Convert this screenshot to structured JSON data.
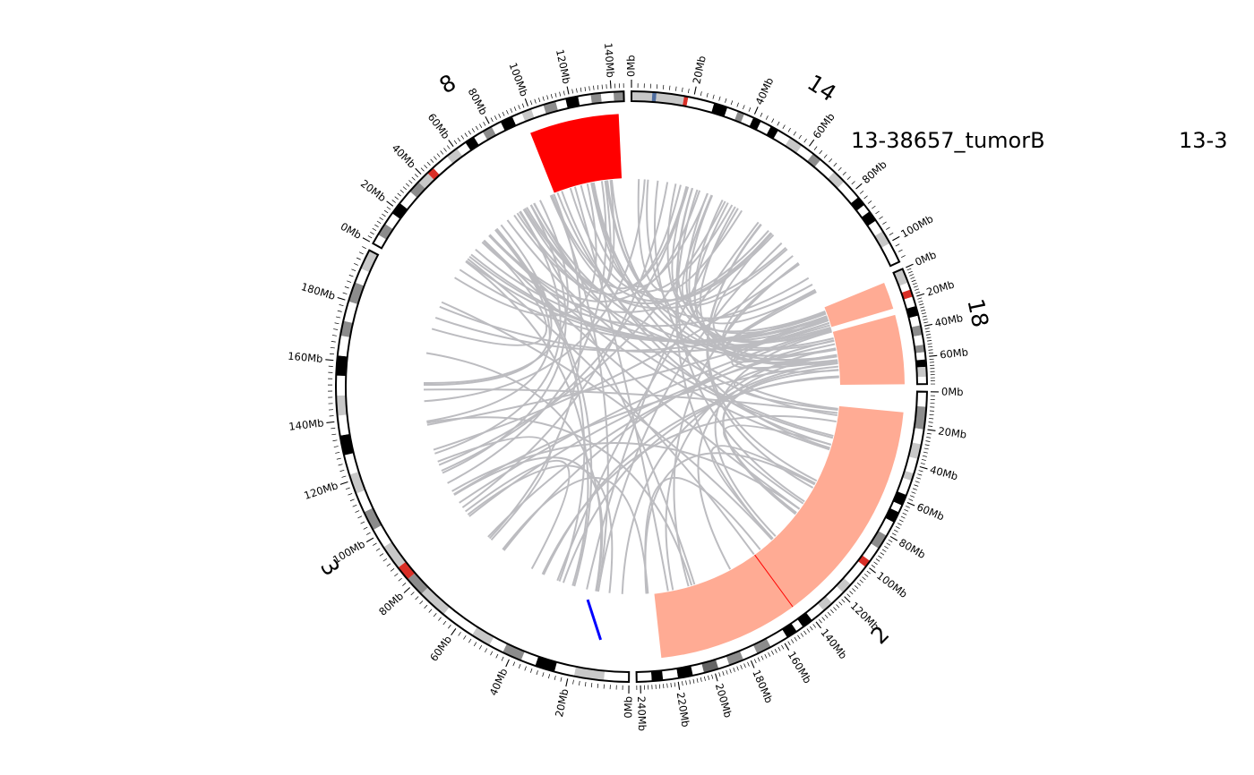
{
  "sample_labels": [
    "13-38657_tumorB",
    "13-3"
  ],
  "colors": {
    "ideogram_outline": "#000000",
    "gneg": "#ffffff",
    "gpos25": "#c8c8c8",
    "gpos50": "#8c8c8c",
    "gpos75": "#646464",
    "gpos100": "#000000",
    "acen": "#d92f27",
    "gvar": "#4f6d9f",
    "links": "#bcbcc0",
    "cnv_gain_strong": "#ff0000",
    "cnv_gain": "#ffab94",
    "cnv_loss": "#0000ff",
    "cnv_breakpoint": "#ff0000"
  },
  "chart_data": {
    "type": "circos",
    "chromosomes": [
      {
        "name": "14",
        "start_deg": 0.0,
        "end_deg": 65.0,
        "length_mb": 107,
        "tick_max_mb": 100,
        "tick_step_mb": 20,
        "bands": [
          [
            0,
            15,
            "gpos25"
          ],
          [
            15,
            18,
            "gvar"
          ],
          [
            18,
            38,
            "gpos25"
          ],
          [
            38,
            41,
            "acen"
          ],
          [
            41,
            60,
            "gneg"
          ],
          [
            60,
            70,
            "gpos100"
          ],
          [
            70,
            78,
            "gneg"
          ],
          [
            78,
            83,
            "gpos50"
          ],
          [
            83,
            90,
            "gneg"
          ],
          [
            90,
            96,
            "gpos100"
          ],
          [
            96,
            104,
            "gneg"
          ],
          [
            104,
            110,
            "gpos100"
          ],
          [
            110,
            120,
            "gneg"
          ],
          [
            120,
            130,
            "gpos25"
          ],
          [
            130,
            140,
            "gneg"
          ],
          [
            140,
            147,
            "gpos50"
          ],
          [
            147,
            160,
            "gneg"
          ],
          [
            160,
            170,
            "gpos25"
          ],
          [
            170,
            185,
            "gneg"
          ],
          [
            185,
            192,
            "gpos100"
          ],
          [
            192,
            198,
            "gneg"
          ],
          [
            198,
            206,
            "gpos100"
          ],
          [
            206,
            215,
            "gneg"
          ],
          [
            215,
            225,
            "gpos25"
          ],
          [
            225,
            240,
            "gneg"
          ]
        ]
      },
      {
        "name": "18",
        "start_deg": 66.5,
        "end_deg": 89.5,
        "length_mb": 78,
        "tick_max_mb": 60,
        "tick_step_mb": 20,
        "bands": [
          [
            0,
            30,
            "gpos25"
          ],
          [
            30,
            45,
            "gneg"
          ],
          [
            45,
            60,
            "acen"
          ],
          [
            60,
            80,
            "gneg"
          ],
          [
            80,
            100,
            "gpos100"
          ],
          [
            100,
            120,
            "gneg"
          ],
          [
            120,
            140,
            "gpos50"
          ],
          [
            140,
            160,
            "gneg"
          ],
          [
            160,
            175,
            "gpos50"
          ],
          [
            175,
            190,
            "gneg"
          ],
          [
            190,
            205,
            "gpos100"
          ],
          [
            205,
            225,
            "gpos25"
          ],
          [
            225,
            240,
            "gneg"
          ]
        ]
      },
      {
        "name": "2",
        "start_deg": 91.0,
        "end_deg": 179.0,
        "length_mb": 242,
        "tick_max_mb": 240,
        "tick_step_mb": 20,
        "bands": [
          [
            0,
            8,
            "gneg"
          ],
          [
            8,
            20,
            "gpos50"
          ],
          [
            20,
            28,
            "gneg"
          ],
          [
            28,
            36,
            "gpos25"
          ],
          [
            36,
            44,
            "gneg"
          ],
          [
            44,
            48,
            "gpos25"
          ],
          [
            48,
            56,
            "gneg"
          ],
          [
            56,
            62,
            "gpos100"
          ],
          [
            62,
            66,
            "gneg"
          ],
          [
            66,
            72,
            "gpos100"
          ],
          [
            72,
            80,
            "gneg"
          ],
          [
            80,
            88,
            "gpos50"
          ],
          [
            88,
            96,
            "gneg"
          ],
          [
            96,
            100,
            "acen"
          ],
          [
            100,
            112,
            "gneg"
          ],
          [
            112,
            118,
            "gpos25"
          ],
          [
            118,
            126,
            "gneg"
          ],
          [
            126,
            132,
            "gpos25"
          ],
          [
            132,
            140,
            "gneg"
          ],
          [
            140,
            146,
            "gpos100"
          ],
          [
            146,
            150,
            "gneg"
          ],
          [
            150,
            156,
            "gpos100"
          ],
          [
            156,
            166,
            "gneg"
          ],
          [
            166,
            174,
            "gpos50"
          ],
          [
            174,
            182,
            "gneg"
          ],
          [
            182,
            190,
            "gpos50"
          ],
          [
            190,
            196,
            "gneg"
          ],
          [
            196,
            204,
            "gpos75"
          ],
          [
            204,
            210,
            "gneg"
          ],
          [
            210,
            218,
            "gpos100"
          ],
          [
            218,
            226,
            "gneg"
          ],
          [
            226,
            232,
            "gpos100"
          ],
          [
            232,
            240,
            "gneg"
          ]
        ]
      },
      {
        "name": "3",
        "start_deg": 180.5,
        "end_deg": 297.5,
        "length_mb": 198,
        "tick_max_mb": 180,
        "tick_step_mb": 20,
        "bands": [
          [
            0,
            10,
            "gneg"
          ],
          [
            10,
            22,
            "gpos25"
          ],
          [
            22,
            30,
            "gneg"
          ],
          [
            30,
            38,
            "gpos100"
          ],
          [
            38,
            44,
            "gneg"
          ],
          [
            44,
            52,
            "gpos50"
          ],
          [
            52,
            58,
            "gneg"
          ],
          [
            58,
            66,
            "gpos25"
          ],
          [
            66,
            80,
            "gneg"
          ],
          [
            80,
            92,
            "gpos25"
          ],
          [
            92,
            100,
            "gpos50"
          ],
          [
            100,
            106,
            "acen"
          ],
          [
            106,
            116,
            "gpos25"
          ],
          [
            116,
            124,
            "gneg"
          ],
          [
            124,
            132,
            "gpos50"
          ],
          [
            132,
            140,
            "gneg"
          ],
          [
            140,
            148,
            "gpos25"
          ],
          [
            148,
            156,
            "gneg"
          ],
          [
            156,
            164,
            "gpos100"
          ],
          [
            164,
            172,
            "gneg"
          ],
          [
            172,
            180,
            "gpos25"
          ],
          [
            180,
            188,
            "gneg"
          ],
          [
            188,
            196,
            "gpos100"
          ],
          [
            196,
            204,
            "gneg"
          ],
          [
            204,
            210,
            "gpos50"
          ],
          [
            210,
            218,
            "gneg"
          ],
          [
            218,
            226,
            "gpos50"
          ],
          [
            226,
            232,
            "gneg"
          ],
          [
            232,
            240,
            "gpos25"
          ]
        ]
      },
      {
        "name": "8",
        "start_deg": 299.0,
        "end_deg": 358.5,
        "length_mb": 146,
        "tick_max_mb": 140,
        "tick_step_mb": 20,
        "bands": [
          [
            0,
            8,
            "gneg"
          ],
          [
            8,
            18,
            "gpos50"
          ],
          [
            18,
            28,
            "gneg"
          ],
          [
            28,
            38,
            "gpos100"
          ],
          [
            38,
            50,
            "gneg"
          ],
          [
            50,
            60,
            "gpos50"
          ],
          [
            60,
            70,
            "gpos25"
          ],
          [
            70,
            76,
            "acen"
          ],
          [
            76,
            90,
            "gneg"
          ],
          [
            90,
            100,
            "gpos25"
          ],
          [
            100,
            108,
            "gneg"
          ],
          [
            108,
            116,
            "gpos100"
          ],
          [
            116,
            124,
            "gneg"
          ],
          [
            124,
            132,
            "gpos50"
          ],
          [
            132,
            140,
            "gneg"
          ],
          [
            140,
            150,
            "gpos100"
          ],
          [
            150,
            158,
            "gneg"
          ],
          [
            158,
            166,
            "gpos25"
          ],
          [
            166,
            176,
            "gneg"
          ],
          [
            176,
            186,
            "gpos50"
          ],
          [
            186,
            194,
            "gneg"
          ],
          [
            194,
            204,
            "gpos100"
          ],
          [
            204,
            214,
            "gneg"
          ],
          [
            214,
            222,
            "gpos50"
          ],
          [
            222,
            232,
            "gneg"
          ],
          [
            232,
            240,
            "gpos50"
          ]
        ]
      }
    ],
    "cnv_segments": [
      {
        "chrom": "8",
        "start_fraction": 0.66,
        "end_fraction": 0.98,
        "level": "gain_strong"
      },
      {
        "chrom": "18",
        "start_fraction": 0.05,
        "end_fraction": 0.3,
        "level": "gain"
      },
      {
        "chrom": "18",
        "start_fraction": 0.36,
        "end_fraction": 1.0,
        "level": "gain"
      },
      {
        "chrom": "2",
        "start_fraction": 0.05,
        "end_fraction": 0.94,
        "level": "gain"
      },
      {
        "chrom": "3",
        "start_fraction": 0.055,
        "end_fraction": 0.095,
        "level": "loss"
      }
    ],
    "links_count": 120,
    "links_seed": 7
  }
}
